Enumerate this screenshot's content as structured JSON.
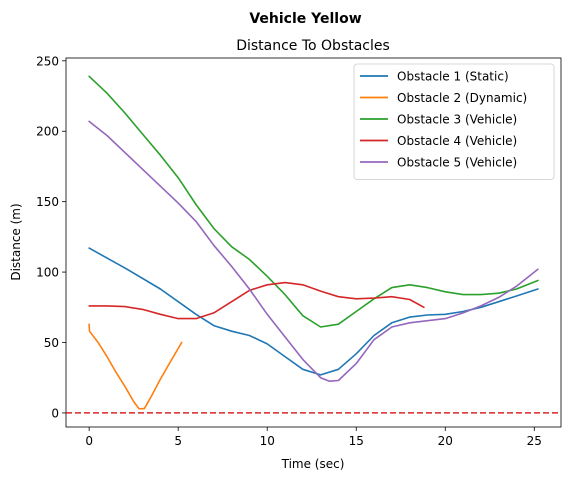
{
  "chart_data": {
    "type": "line",
    "suptitle": "Vehicle Yellow",
    "title": "Distance To Obstacles",
    "xlabel": "Time (sec)",
    "ylabel": "Distance (m)",
    "xlim": [
      -1.3,
      26.5
    ],
    "ylim": [
      -10,
      252
    ],
    "xticks": [
      0,
      5,
      10,
      15,
      20,
      25
    ],
    "yticks": [
      0,
      50,
      100,
      150,
      200,
      250
    ],
    "grid": false,
    "legend_position": "top-right",
    "reference_line": {
      "y": 0,
      "color": "#d62728",
      "style": "dashed"
    },
    "series": [
      {
        "name": "Obstacle 1 (Static)",
        "color": "#1f77b4",
        "points": [
          [
            0,
            117
          ],
          [
            2,
            103
          ],
          [
            4,
            88
          ],
          [
            6,
            70
          ],
          [
            7,
            62
          ],
          [
            8,
            58
          ],
          [
            9,
            55
          ],
          [
            10,
            49
          ],
          [
            11,
            40
          ],
          [
            12,
            31
          ],
          [
            13,
            27
          ],
          [
            14,
            31
          ],
          [
            15,
            42
          ],
          [
            16,
            55
          ],
          [
            17,
            64
          ],
          [
            18,
            68
          ],
          [
            19,
            69.5
          ],
          [
            20,
            70
          ],
          [
            21,
            72
          ],
          [
            22,
            75
          ],
          [
            23,
            79
          ],
          [
            24,
            83
          ],
          [
            25.2,
            88
          ]
        ]
      },
      {
        "name": "Obstacle 2 (Dynamic)",
        "color": "#ff7f0e",
        "points": [
          [
            0,
            63
          ],
          [
            0.02,
            58
          ],
          [
            0.5,
            50
          ],
          [
            1,
            40
          ],
          [
            1.5,
            29
          ],
          [
            2,
            19
          ],
          [
            2.5,
            8
          ],
          [
            2.8,
            3
          ],
          [
            3.1,
            3
          ],
          [
            3.5,
            12
          ],
          [
            4,
            24
          ],
          [
            4.5,
            35
          ],
          [
            5.2,
            50
          ]
        ]
      },
      {
        "name": "Obstacle 3 (Vehicle)",
        "color": "#2ca02c",
        "points": [
          [
            0,
            239
          ],
          [
            1,
            227
          ],
          [
            2,
            213
          ],
          [
            3,
            198
          ],
          [
            4,
            183
          ],
          [
            5,
            167
          ],
          [
            6,
            148
          ],
          [
            7,
            131
          ],
          [
            8,
            118
          ],
          [
            9,
            109
          ],
          [
            10,
            97
          ],
          [
            11,
            84
          ],
          [
            12,
            69
          ],
          [
            13,
            61
          ],
          [
            14,
            63
          ],
          [
            15,
            72
          ],
          [
            16,
            81
          ],
          [
            17,
            89
          ],
          [
            18,
            91
          ],
          [
            19,
            89
          ],
          [
            20,
            86
          ],
          [
            21,
            84
          ],
          [
            22,
            84
          ],
          [
            23,
            85
          ],
          [
            24,
            88
          ],
          [
            25.2,
            94
          ]
        ]
      },
      {
        "name": "Obstacle 4 (Vehicle)",
        "color": "#d62728",
        "points": [
          [
            0,
            76
          ],
          [
            1,
            76
          ],
          [
            2,
            75.5
          ],
          [
            3,
            73.5
          ],
          [
            4,
            70
          ],
          [
            5,
            67
          ],
          [
            6,
            67
          ],
          [
            7,
            71
          ],
          [
            8,
            79
          ],
          [
            9,
            87
          ],
          [
            10,
            91
          ],
          [
            11,
            92.5
          ],
          [
            12,
            91
          ],
          [
            13,
            86.5
          ],
          [
            14,
            82.5
          ],
          [
            15,
            81
          ],
          [
            16,
            81.5
          ],
          [
            17,
            82.5
          ],
          [
            18,
            80.5
          ],
          [
            18.8,
            75
          ]
        ]
      },
      {
        "name": "Obstacle 5 (Vehicle)",
        "color": "#9467bd",
        "points": [
          [
            0,
            207
          ],
          [
            1,
            197
          ],
          [
            2,
            185
          ],
          [
            3,
            173
          ],
          [
            4,
            161
          ],
          [
            5,
            149
          ],
          [
            6,
            136
          ],
          [
            7,
            119
          ],
          [
            8,
            104
          ],
          [
            9,
            88
          ],
          [
            10,
            70
          ],
          [
            11,
            54
          ],
          [
            12,
            38
          ],
          [
            13,
            25
          ],
          [
            13.5,
            22.5
          ],
          [
            14,
            23
          ],
          [
            15,
            35
          ],
          [
            16,
            52
          ],
          [
            17,
            61
          ],
          [
            18,
            64
          ],
          [
            19,
            65.5
          ],
          [
            20,
            67
          ],
          [
            21,
            71
          ],
          [
            22,
            76
          ],
          [
            23,
            82
          ],
          [
            24,
            90
          ],
          [
            25.2,
            102
          ]
        ]
      }
    ]
  }
}
